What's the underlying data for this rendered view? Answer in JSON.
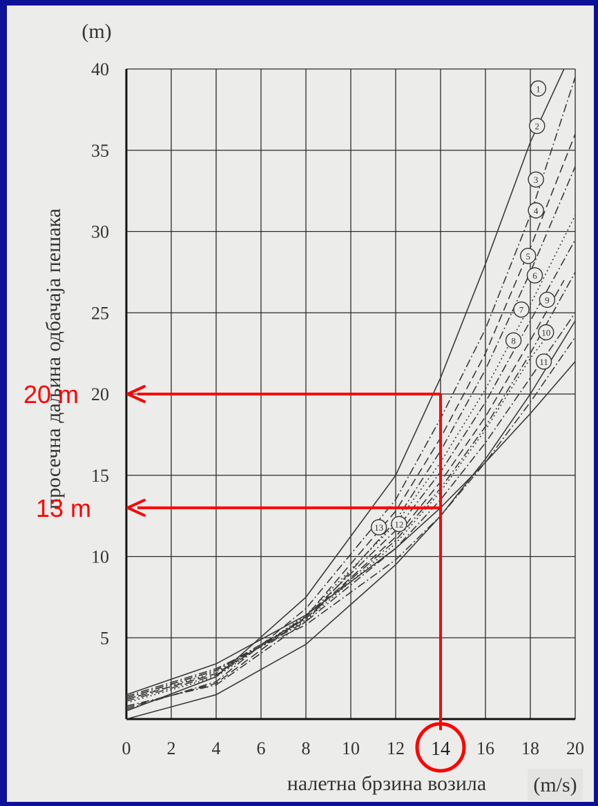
{
  "chart_data": {
    "type": "line",
    "ylabel": "просечна даљина одбачаја пешака",
    "yunit": "(m)",
    "xlabel": "налетна брзина возила",
    "xunit": "(m/s)",
    "xlim": [
      0,
      20
    ],
    "ylim": [
      0,
      40
    ],
    "x_ticks": [
      "0",
      "2",
      "4",
      "6",
      "8",
      "10",
      "12",
      "14",
      "16",
      "18",
      "20"
    ],
    "y_ticks": [
      "5",
      "10",
      "15",
      "20",
      "25",
      "30",
      "35",
      "40"
    ],
    "grid": true,
    "series": [
      {
        "name": "1",
        "style": "solid",
        "x": [
          0,
          4,
          8,
          12,
          14,
          16,
          18,
          19.5
        ],
        "y": [
          0.5,
          2.6,
          7.5,
          15,
          21,
          28,
          35.5,
          40
        ]
      },
      {
        "name": "2",
        "style": "dashdot",
        "x": [
          0,
          4,
          8,
          12,
          14,
          16,
          18,
          20
        ],
        "y": [
          0.6,
          2.3,
          6.8,
          13.5,
          18.5,
          24,
          31,
          39.5
        ]
      },
      {
        "name": "3",
        "style": "dashed",
        "x": [
          0,
          4,
          8,
          12,
          14,
          16,
          18,
          20
        ],
        "y": [
          0.7,
          2.2,
          6.3,
          12.8,
          17.3,
          22.5,
          29,
          36
        ]
      },
      {
        "name": "4",
        "style": "dashdot",
        "x": [
          0,
          4,
          8,
          12,
          14,
          16,
          18,
          20
        ],
        "y": [
          0.8,
          2.1,
          6,
          12.2,
          16.5,
          21.5,
          27.5,
          34
        ]
      },
      {
        "name": "5",
        "style": "dotted",
        "x": [
          0,
          4,
          8,
          12,
          14,
          16,
          18,
          20
        ],
        "y": [
          1,
          2.6,
          6.4,
          12,
          15.8,
          20.3,
          25.5,
          31
        ]
      },
      {
        "name": "6",
        "style": "dashdot",
        "x": [
          0,
          4,
          8,
          12,
          14,
          16,
          18,
          20
        ],
        "y": [
          1.1,
          2.7,
          6.3,
          11.6,
          15.2,
          19.5,
          24.5,
          29.5
        ]
      },
      {
        "name": "7",
        "style": "dashed",
        "x": [
          0,
          4,
          8,
          12,
          14,
          16,
          18,
          19.5
        ],
        "y": [
          1.2,
          2.8,
          6.2,
          11.2,
          14.6,
          18.6,
          23.3,
          27
        ]
      },
      {
        "name": "8",
        "style": "dotted",
        "x": [
          0,
          4,
          8,
          12,
          14,
          16,
          18,
          19
        ],
        "y": [
          1.2,
          2.9,
          6.1,
          10.8,
          14,
          17.8,
          22.2,
          24
        ]
      },
      {
        "name": "9",
        "style": "dashdot",
        "x": [
          0,
          4,
          8,
          12,
          14,
          16,
          18,
          20
        ],
        "y": [
          1.3,
          3,
          6.2,
          11,
          14.2,
          18,
          22.5,
          27.5
        ]
      },
      {
        "name": "10",
        "style": "dashdot",
        "x": [
          0,
          4,
          8,
          12,
          14,
          16,
          18,
          20
        ],
        "y": [
          1.3,
          3,
          6,
          10.5,
          13.5,
          17,
          21,
          25
        ]
      },
      {
        "name": "11",
        "style": "dashdot",
        "x": [
          0,
          4,
          8,
          12,
          14,
          16,
          18,
          20
        ],
        "y": [
          1.4,
          3.1,
          5.8,
          9.8,
          12.5,
          15.8,
          19.5,
          23.5
        ]
      },
      {
        "name": "12",
        "style": "solid",
        "x": [
          0,
          4,
          8,
          12,
          14,
          16,
          18,
          20
        ],
        "y": [
          1.5,
          3.4,
          6.4,
          10.5,
          13,
          15.8,
          18.8,
          22
        ]
      },
      {
        "name": "13",
        "style": "solid",
        "x": [
          0,
          4,
          8,
          12,
          14,
          16,
          18,
          20
        ],
        "y": [
          0,
          1.5,
          4.6,
          9.5,
          12.5,
          16,
          20,
          24.5
        ]
      }
    ],
    "series_labels": [
      {
        "name": "1",
        "x": 18.35,
        "y": 38.8
      },
      {
        "name": "2",
        "x": 18.3,
        "y": 36.5
      },
      {
        "name": "3",
        "x": 18.25,
        "y": 33.2
      },
      {
        "name": "4",
        "x": 18.25,
        "y": 31.3
      },
      {
        "name": "5",
        "x": 17.9,
        "y": 28.5
      },
      {
        "name": "6",
        "x": 18.2,
        "y": 27.3
      },
      {
        "name": "9",
        "x": 18.75,
        "y": 25.8
      },
      {
        "name": "7",
        "x": 17.6,
        "y": 25.2
      },
      {
        "name": "10",
        "x": 18.7,
        "y": 23.8
      },
      {
        "name": "8",
        "x": 17.25,
        "y": 23.3
      },
      {
        "name": "11",
        "x": 18.6,
        "y": 22.0
      },
      {
        "name": "13",
        "x": 11.25,
        "y": 11.8
      },
      {
        "name": "12",
        "x": 12.15,
        "y": 12.0
      }
    ]
  },
  "annotations": {
    "color": "#ff0000",
    "highlight_x": "14",
    "lines": [
      {
        "label": "20 m",
        "x": 14,
        "y": 20
      },
      {
        "label": "13 m",
        "x": 14,
        "y": 13
      }
    ]
  }
}
